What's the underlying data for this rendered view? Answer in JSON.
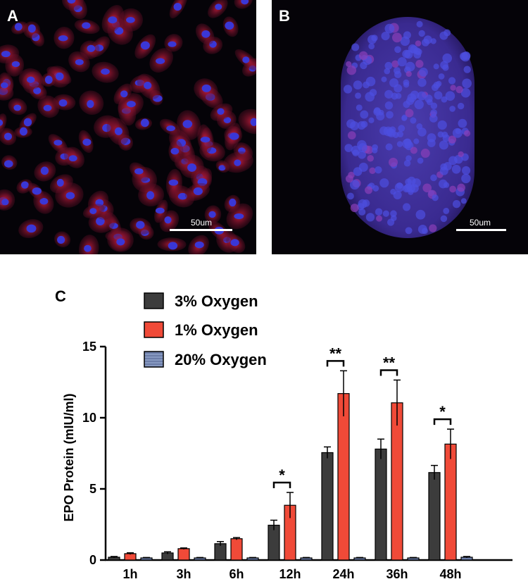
{
  "panels": [
    {
      "letter": "A",
      "scale_label": "50um"
    },
    {
      "letter": "B",
      "scale_label": "50um"
    }
  ],
  "chart_letter": "C",
  "colors": {
    "oxygen_3": "#3c3c3c",
    "oxygen_1": "#f04a38",
    "oxygen_20": "#6c7da8",
    "cell_red": "#c51d3e",
    "nucleus_blue": "#3a37d6"
  },
  "chart_data": {
    "type": "bar",
    "ylabel": "EPO Protein  (mIU/ml)",
    "xlabel": "",
    "ylim": [
      0,
      15
    ],
    "yticks": [
      "0",
      "5",
      "10",
      "15"
    ],
    "categories": [
      "1h",
      "3h",
      "6h",
      "12h",
      "24h",
      "36h",
      "48h"
    ],
    "legend_position": "top-left",
    "series": [
      {
        "name": "3% Oxygen",
        "values": [
          0.2,
          0.5,
          1.15,
          2.45,
          7.55,
          7.8,
          6.15
        ],
        "errors": [
          0.05,
          0.08,
          0.15,
          0.35,
          0.4,
          0.7,
          0.5
        ]
      },
      {
        "name": "1% Oxygen",
        "values": [
          0.45,
          0.8,
          1.5,
          3.85,
          11.7,
          11.05,
          8.15
        ],
        "errors": [
          0.06,
          0.05,
          0.08,
          0.9,
          1.6,
          1.6,
          1.05
        ]
      },
      {
        "name": "20% Oxygen",
        "values": [
          0.15,
          0.15,
          0.15,
          0.15,
          0.15,
          0.15,
          0.2
        ],
        "errors": [
          0.03,
          0.03,
          0.03,
          0.03,
          0.03,
          0.03,
          0.05
        ]
      }
    ],
    "significance": [
      {
        "category": "12h",
        "label": "*"
      },
      {
        "category": "24h",
        "label": "**"
      },
      {
        "category": "36h",
        "label": "**"
      },
      {
        "category": "48h",
        "label": "*"
      }
    ]
  }
}
